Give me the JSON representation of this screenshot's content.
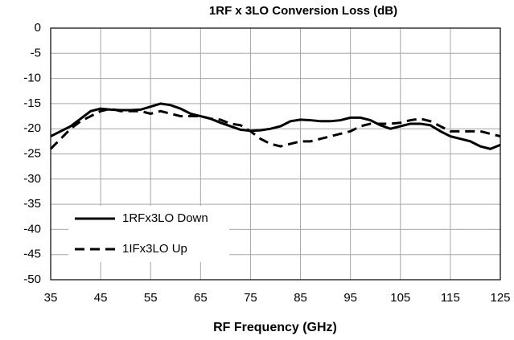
{
  "chart_data": {
    "type": "line",
    "title": "1RF x 3LO Conversion Loss (dB)",
    "x_label": "RF Frequency  (GHz)",
    "x": [
      35,
      37,
      39,
      41,
      43,
      45,
      47,
      49,
      51,
      53,
      55,
      57,
      59,
      61,
      63,
      65,
      67,
      69,
      71,
      73,
      75,
      77,
      79,
      81,
      83,
      85,
      87,
      89,
      91,
      93,
      95,
      97,
      99,
      101,
      103,
      105,
      107,
      109,
      111,
      113,
      115,
      117,
      119,
      121,
      123,
      125
    ],
    "series": [
      {
        "name": "1RFx3LO Down",
        "color": "#000000",
        "dash": "solid",
        "values": [
          -21.5,
          -20.5,
          -19.5,
          -18,
          -16.5,
          -16,
          -16.2,
          -16.3,
          -16.3,
          -16.2,
          -15.6,
          -15,
          -15.3,
          -16,
          -17,
          -17.5,
          -18,
          -18.8,
          -19.5,
          -20.2,
          -20.4,
          -20.3,
          -20,
          -19.5,
          -18.5,
          -18.2,
          -18.3,
          -18.5,
          -18.5,
          -18.3,
          -17.8,
          -17.8,
          -18.3,
          -19.3,
          -20,
          -19.5,
          -19,
          -19,
          -19.3,
          -20.5,
          -21.5,
          -22,
          -22.5,
          -23.5,
          -24,
          -23.2
        ]
      },
      {
        "name": "1IFx3LO Up",
        "color": "#000000",
        "dash": "dashed",
        "values": [
          -24,
          -22,
          -20,
          -18.5,
          -17.5,
          -16.5,
          -16,
          -16.5,
          -16.5,
          -16.5,
          -17,
          -16.5,
          -17,
          -17.5,
          -17.5,
          -17.5,
          -18,
          -18.2,
          -19,
          -19.3,
          -20.5,
          -22,
          -23,
          -23.5,
          -23,
          -22.5,
          -22.5,
          -22,
          -21.5,
          -21,
          -20.5,
          -19.5,
          -19,
          -19,
          -19,
          -18.8,
          -18.3,
          -18,
          -18.5,
          -19.5,
          -20.5,
          -20.5,
          -20.5,
          -20.5,
          -21,
          -21.5
        ]
      }
    ],
    "xlim": [
      35,
      125
    ],
    "xticks": [
      35,
      45,
      55,
      65,
      75,
      85,
      95,
      105,
      115,
      125
    ],
    "ylim": [
      -50,
      0
    ],
    "yticks": [
      0,
      -5,
      -10,
      -15,
      -20,
      -25,
      -30,
      -35,
      -40,
      -45,
      -50
    ],
    "grid": true,
    "legend": "lower left"
  }
}
